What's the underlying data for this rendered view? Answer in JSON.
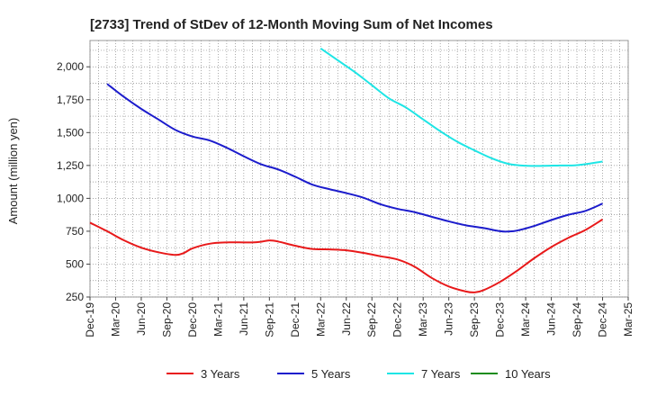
{
  "chart_data": {
    "type": "line",
    "title": "[2733]  Trend of StDev of 12-Month Moving Sum of Net Incomes",
    "xlabel": "",
    "ylabel": "Amount (million yen)",
    "ylim": [
      250,
      2200
    ],
    "yticks": [
      250,
      500,
      750,
      1000,
      1250,
      1500,
      1750,
      2000
    ],
    "ytick_labels": [
      "250",
      "500",
      "750",
      "1,000",
      "1,250",
      "1,500",
      "1,750",
      "2,000"
    ],
    "xticks": [
      "2019-12",
      "2020-03",
      "2020-06",
      "2020-09",
      "2020-12",
      "2021-03",
      "2021-06",
      "2021-09",
      "2021-12",
      "2022-03",
      "2022-06",
      "2022-09",
      "2022-12",
      "2023-03",
      "2023-06",
      "2023-09",
      "2023-12",
      "2024-03",
      "2024-06",
      "2024-09",
      "2024-12",
      "2025-03"
    ],
    "xtick_labels": [
      "Dec-19",
      "Mar-20",
      "Jun-20",
      "Sep-20",
      "Dec-20",
      "Mar-21",
      "Jun-21",
      "Sep-21",
      "Dec-21",
      "Mar-22",
      "Jun-22",
      "Sep-22",
      "Dec-22",
      "Mar-23",
      "Jun-23",
      "Sep-23",
      "Dec-23",
      "Mar-24",
      "Jun-24",
      "Sep-24",
      "Dec-24",
      "Mar-25"
    ],
    "grid": true,
    "legend_position": "bottom",
    "series": [
      {
        "name": "3 Years",
        "color": "#e8191a",
        "points": [
          [
            "2019-12",
            815
          ],
          [
            "2020-02",
            750
          ],
          [
            "2020-04",
            680
          ],
          [
            "2020-06",
            625
          ],
          [
            "2020-08",
            590
          ],
          [
            "2020-10",
            570
          ],
          [
            "2020-11",
            585
          ],
          [
            "2020-12",
            620
          ],
          [
            "2021-02",
            655
          ],
          [
            "2021-04",
            665
          ],
          [
            "2021-06",
            665
          ],
          [
            "2021-07",
            665
          ],
          [
            "2021-08",
            670
          ],
          [
            "2021-09",
            680
          ],
          [
            "2021-10",
            672
          ],
          [
            "2021-12",
            640
          ],
          [
            "2022-02",
            615
          ],
          [
            "2022-04",
            612
          ],
          [
            "2022-06",
            605
          ],
          [
            "2022-08",
            585
          ],
          [
            "2022-10",
            560
          ],
          [
            "2022-12",
            535
          ],
          [
            "2023-02",
            480
          ],
          [
            "2023-04",
            395
          ],
          [
            "2023-06",
            330
          ],
          [
            "2023-08",
            292
          ],
          [
            "2023-09",
            285
          ],
          [
            "2023-10",
            300
          ],
          [
            "2023-12",
            365
          ],
          [
            "2024-02",
            450
          ],
          [
            "2024-04",
            545
          ],
          [
            "2024-06",
            630
          ],
          [
            "2024-08",
            700
          ],
          [
            "2024-10",
            760
          ],
          [
            "2024-12",
            840
          ]
        ]
      },
      {
        "name": "5 Years",
        "color": "#1c1ccc",
        "points": [
          [
            "2020-02",
            1870
          ],
          [
            "2020-04",
            1770
          ],
          [
            "2020-06",
            1680
          ],
          [
            "2020-08",
            1600
          ],
          [
            "2020-10",
            1520
          ],
          [
            "2020-12",
            1470
          ],
          [
            "2021-02",
            1440
          ],
          [
            "2021-04",
            1385
          ],
          [
            "2021-06",
            1320
          ],
          [
            "2021-08",
            1260
          ],
          [
            "2021-10",
            1220
          ],
          [
            "2021-12",
            1165
          ],
          [
            "2022-02",
            1105
          ],
          [
            "2022-04",
            1070
          ],
          [
            "2022-06",
            1040
          ],
          [
            "2022-08",
            1005
          ],
          [
            "2022-10",
            955
          ],
          [
            "2022-12",
            920
          ],
          [
            "2023-02",
            895
          ],
          [
            "2023-04",
            860
          ],
          [
            "2023-06",
            825
          ],
          [
            "2023-08",
            795
          ],
          [
            "2023-10",
            775
          ],
          [
            "2023-12",
            750
          ],
          [
            "2024-01",
            748
          ],
          [
            "2024-02",
            755
          ],
          [
            "2024-04",
            790
          ],
          [
            "2024-06",
            835
          ],
          [
            "2024-08",
            875
          ],
          [
            "2024-10",
            905
          ],
          [
            "2024-12",
            960
          ]
        ]
      },
      {
        "name": "7 Years",
        "color": "#1ee5e5",
        "points": [
          [
            "2022-03",
            2140
          ],
          [
            "2022-05",
            2050
          ],
          [
            "2022-07",
            1960
          ],
          [
            "2022-09",
            1860
          ],
          [
            "2022-11",
            1760
          ],
          [
            "2023-01",
            1690
          ],
          [
            "2023-03",
            1600
          ],
          [
            "2023-05",
            1510
          ],
          [
            "2023-07",
            1430
          ],
          [
            "2023-09",
            1365
          ],
          [
            "2023-11",
            1305
          ],
          [
            "2024-01",
            1262
          ],
          [
            "2024-03",
            1248
          ],
          [
            "2024-05",
            1247
          ],
          [
            "2024-07",
            1250
          ],
          [
            "2024-09",
            1252
          ],
          [
            "2024-12",
            1280
          ]
        ]
      },
      {
        "name": "10 Years",
        "color": "#1a8c1a",
        "points": []
      }
    ]
  }
}
